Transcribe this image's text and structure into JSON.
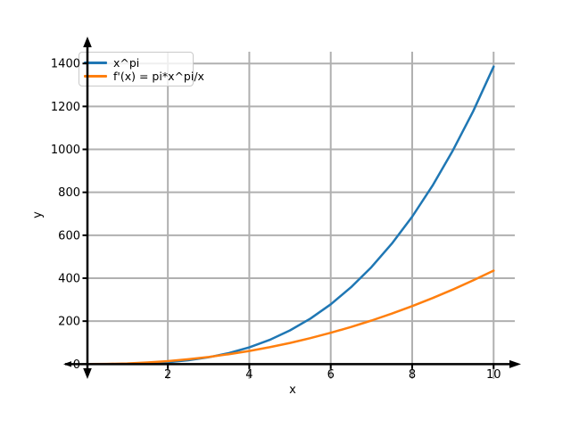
{
  "chart_data": {
    "type": "line",
    "title": "",
    "xlabel": "x",
    "ylabel": "y",
    "xlim": [
      0.025,
      10.52
    ],
    "ylim": [
      -69.3,
      1454.8
    ],
    "xticks": [
      2,
      4,
      6,
      8,
      10
    ],
    "yticks": [
      0,
      200,
      400,
      600,
      800,
      1000,
      1200,
      1400
    ],
    "grid": true,
    "legend_position": "upper left",
    "series": [
      {
        "name": "x^pi",
        "color": "#1f77b4",
        "x": [
          0.1,
          0.5,
          1,
          1.5,
          2,
          2.5,
          3,
          3.5,
          4,
          4.5,
          5,
          5.5,
          6,
          6.5,
          7,
          7.5,
          8,
          8.5,
          9,
          9.5,
          10
        ],
        "y": [
          0,
          0.11,
          1,
          3.57,
          8.82,
          17.8,
          31.5,
          51.2,
          77.9,
          112.8,
          157,
          211.8,
          278.3,
          357.9,
          451.5,
          561.3,
          686.5,
          831,
          995,
          1177.6,
          1385.5
        ]
      },
      {
        "name": "f'(x) = pi*x^pi/x",
        "color": "#ff7f0e",
        "x": [
          0.1,
          0.5,
          1,
          1.5,
          2,
          2.5,
          3,
          3.5,
          4,
          4.5,
          5,
          5.5,
          6,
          6.5,
          7,
          7.5,
          8,
          8.5,
          9,
          9.5,
          10
        ],
        "y": [
          0.02,
          0.71,
          3.14,
          7.49,
          13.86,
          22.36,
          33.04,
          45.95,
          61.17,
          78.72,
          98.65,
          120.97,
          145.72,
          173,
          202.8,
          235,
          269.9,
          307.3,
          347.4,
          389.8,
          435.3
        ]
      }
    ]
  },
  "colors": {
    "background": "#ffffff",
    "grid": "#b0b0b0",
    "axis": "#000000",
    "tick_label": "#000000",
    "legend_border": "#c9c9c9"
  }
}
